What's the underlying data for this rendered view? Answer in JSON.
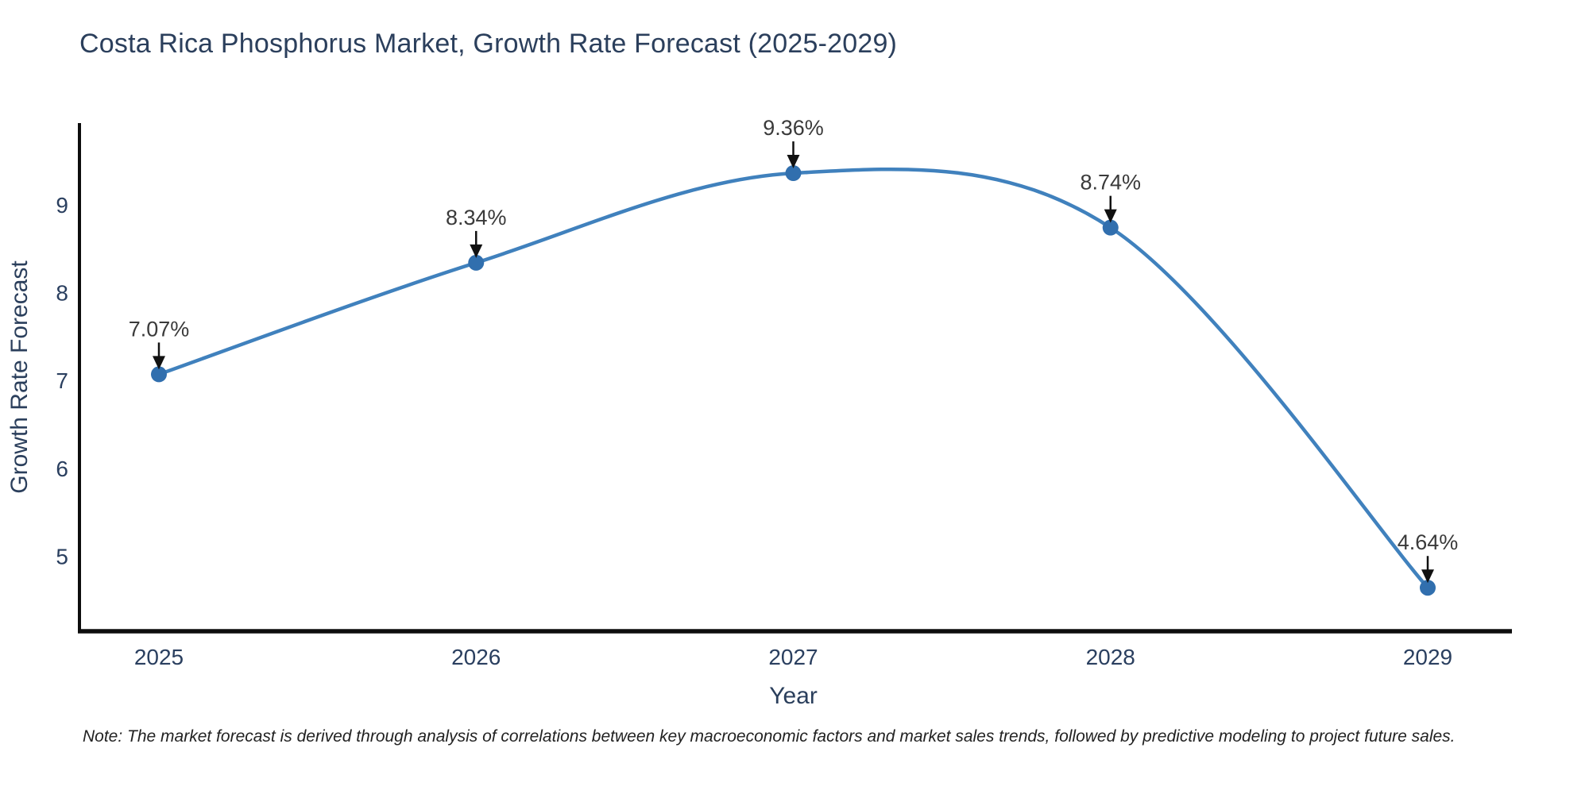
{
  "title": "Costa Rica Phosphorus Market, Growth Rate Forecast (2025-2029)",
  "note": "Note: The market forecast is derived through analysis of correlations between key macroeconomic factors and market sales trends, followed by predictive modeling to project future sales.",
  "chart_data": {
    "type": "line",
    "line_shape": "spline",
    "title": "Costa Rica Phosphorus Market, Growth Rate Forecast (2025-2029)",
    "xlabel": "Year",
    "ylabel": "Growth Rate Forecast",
    "x": [
      "2025",
      "2026",
      "2027",
      "2028",
      "2029"
    ],
    "values": [
      7.07,
      8.34,
      9.36,
      8.74,
      4.64
    ],
    "point_labels": [
      "7.07%",
      "8.34%",
      "9.36%",
      "8.74%",
      "4.64%"
    ],
    "yticks": [
      5,
      6,
      7,
      8,
      9
    ],
    "ylim": [
      4.145,
      9.93
    ],
    "grid": false,
    "legend": "none",
    "annotation_arrows": true,
    "colors": {
      "line": "#4081bd",
      "marker": "#316fae",
      "axis": "#0d0d0d",
      "tick_text": "#2a3f5f",
      "axis_title_text": "#2b3f5c",
      "annotation_text": "#3a3a3a",
      "arrow": "#111111",
      "background": "#ffffff"
    }
  }
}
